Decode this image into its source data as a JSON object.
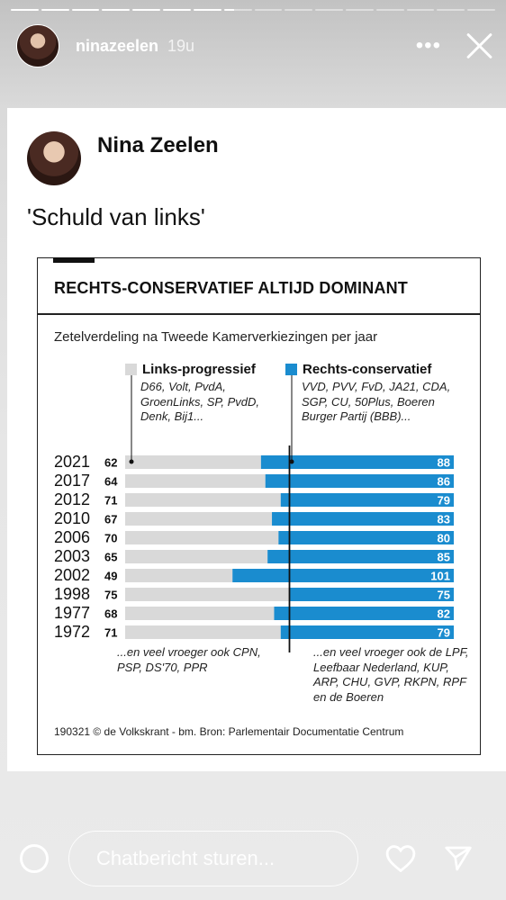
{
  "story": {
    "segments": {
      "total": 16,
      "completed": 7,
      "current_fraction": 0.35
    },
    "username": "ninazeelen",
    "time_ago": "19u"
  },
  "post": {
    "author": "Nina Zeelen",
    "text": "'Schuld van links'"
  },
  "chart_data": {
    "type": "bar",
    "title": "RECHTS-CONSERVATIEF ALTIJD DOMINANT",
    "subtitle": "Zetelverdeling na Tweede Kamerverkiezingen per jaar",
    "categories": [
      "2021",
      "2017",
      "2012",
      "2010",
      "2006",
      "2003",
      "2002",
      "1998",
      "1977",
      "1972"
    ],
    "series": [
      {
        "name": "Links-progressief",
        "color": "#d9d9d9",
        "values": [
          62,
          64,
          71,
          67,
          70,
          65,
          49,
          75,
          68,
          71
        ]
      },
      {
        "name": "Rechts-conservatief",
        "color": "#1a8ccf",
        "values": [
          88,
          86,
          79,
          83,
          80,
          85,
          101,
          75,
          82,
          79
        ]
      }
    ],
    "total_seats": 150,
    "midline": 75,
    "left_parties": "D66, Volt, PvdA, GroenLinks, SP, PvdD, Denk, Bij1...",
    "right_parties": "VVD, PVV, FvD, JA21, CDA, SGP, CU, 50Plus, Boeren Burger Partij (BBB)...",
    "left_footnote": "...en veel vroeger ook CPN, PSP, DS'70, PPR",
    "right_footnote": "...en veel vroeger ook de LPF, Leefbaar Nederland, KUP, ARP, CHU, GVP, RKPN, RPF en de Boeren",
    "source": "190321 © de Volkskrant - bm. Bron: Parlementair Documentatie Centrum",
    "legend_position": "top"
  },
  "footer": {
    "message_placeholder": "Chatbericht sturen..."
  },
  "icons": {
    "more": "more-icon",
    "close": "close-icon",
    "camera": "camera-icon",
    "heart": "heart-icon",
    "send": "send-icon"
  }
}
